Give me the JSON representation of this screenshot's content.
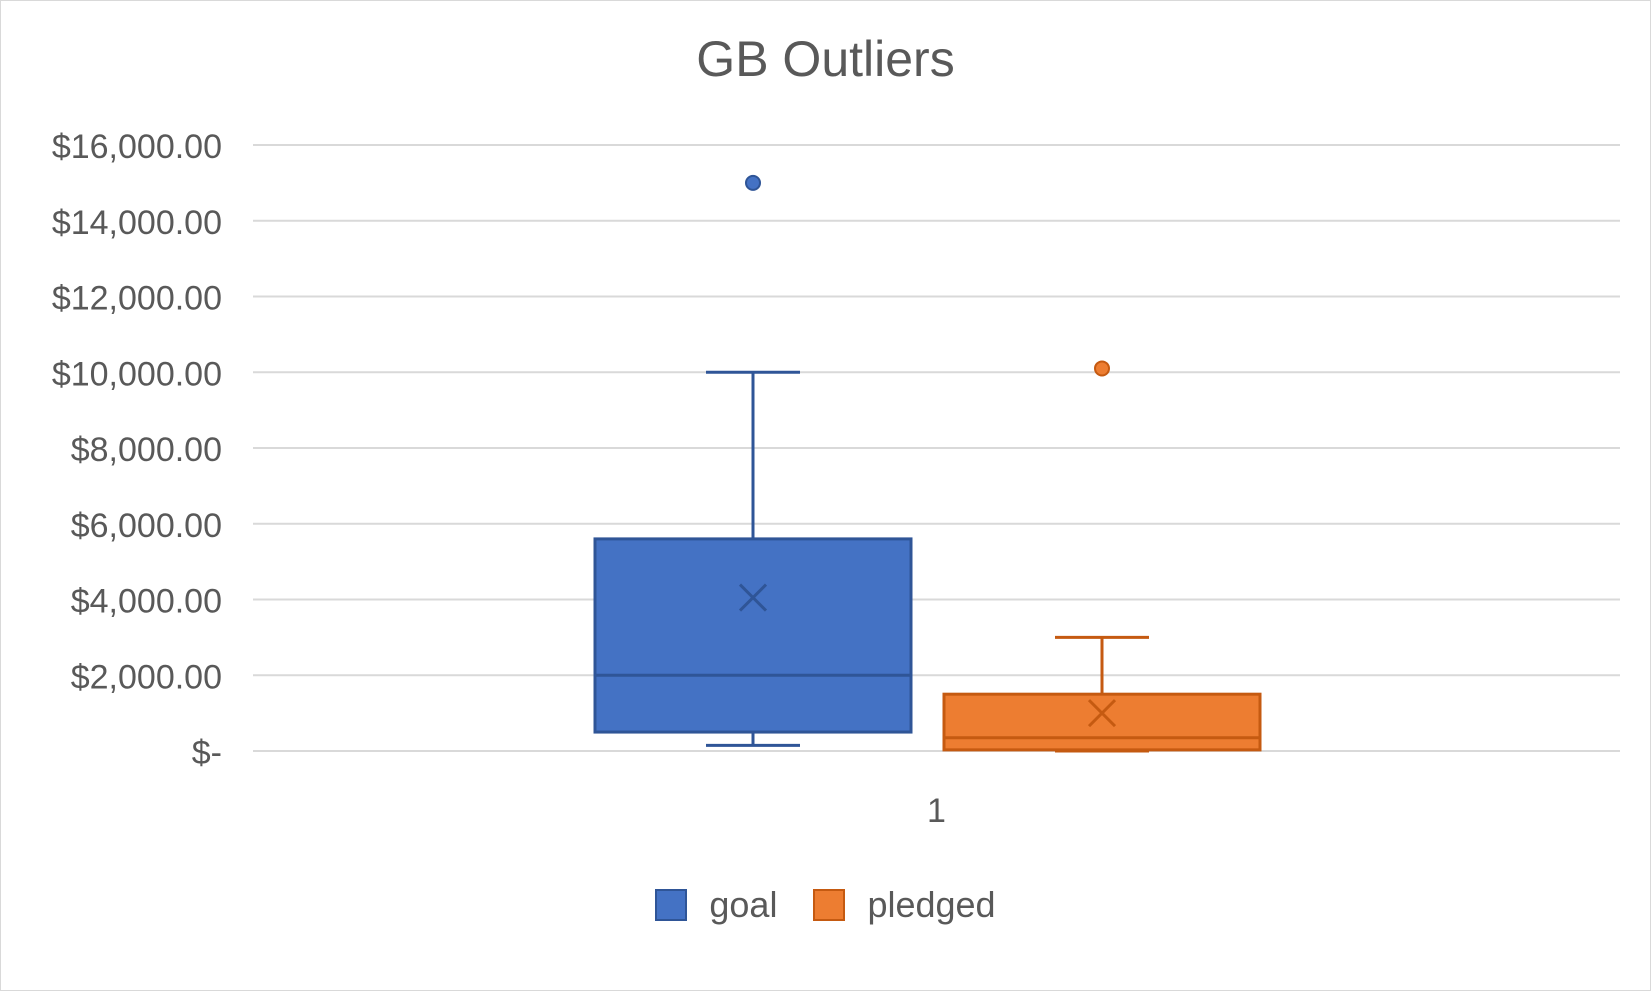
{
  "chart_data": {
    "type": "box",
    "title": "GB Outliers",
    "xlabel": "",
    "ylabel": "",
    "categories": [
      "1"
    ],
    "ylim": [
      0,
      16000
    ],
    "yticks": [
      0,
      2000,
      4000,
      6000,
      8000,
      10000,
      12000,
      14000,
      16000
    ],
    "ytick_labels": [
      "$-",
      "$2,000.00",
      "$4,000.00",
      "$6,000.00",
      "$8,000.00",
      "$10,000.00",
      "$12,000.00",
      "$14,000.00",
      "$16,000.00"
    ],
    "grid": true,
    "legend_position": "bottom",
    "series": [
      {
        "name": "goal",
        "color": "#4472c4",
        "edge_color": "#2f5597",
        "min": 150,
        "q1": 500,
        "median": 2000,
        "q3": 5600,
        "max": 10000,
        "mean": 4050,
        "outliers": [
          15000
        ]
      },
      {
        "name": "pledged",
        "color": "#ed7d31",
        "edge_color": "#c55a11",
        "min": 0,
        "q1": 30,
        "median": 350,
        "q3": 1500,
        "max": 3000,
        "mean": 1000,
        "outliers": [
          10100
        ]
      }
    ]
  }
}
